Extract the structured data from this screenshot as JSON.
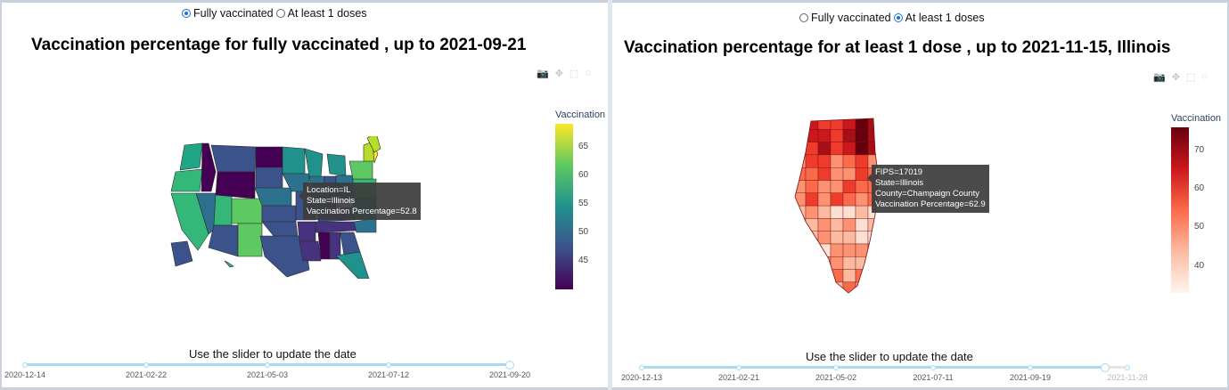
{
  "left": {
    "radio_options": [
      {
        "label": "Fully vaccinated",
        "checked": true
      },
      {
        "label": "At least 1 doses",
        "checked": false
      }
    ],
    "title": "Vaccination percentage for fully vaccinated , up to 2021-09-21",
    "colorbar": {
      "title": "Vaccination",
      "ticks": [
        "65",
        "60",
        "55",
        "50",
        "45"
      ],
      "min": 40,
      "max": 69,
      "colors": [
        "#fde725",
        "#5ec962",
        "#21918c",
        "#3b528b",
        "#440154"
      ]
    },
    "tooltip": {
      "lines": [
        "Location=IL",
        "State=Illinois",
        "Vaccination Percentage=52.8"
      ]
    },
    "slider": {
      "caption": "Use the slider to update the date",
      "marks": [
        "2020-12-14",
        "2021-02-22",
        "2021-05-03",
        "2021-07-12",
        "2021-09-20"
      ],
      "position": 1.0
    }
  },
  "right": {
    "radio_options": [
      {
        "label": "Fully vaccinated",
        "checked": false
      },
      {
        "label": "At least 1 doses",
        "checked": true
      }
    ],
    "title": "Vaccination percentage for at least 1 dose , up to 2021-11-15, Illinois",
    "colorbar": {
      "title": "Vaccination",
      "ticks": [
        "70",
        "60",
        "50",
        "40"
      ],
      "min": 33,
      "max": 76,
      "colors": [
        "#67000d",
        "#cb181d",
        "#fb6a4a",
        "#fcbba1",
        "#fff5f0"
      ]
    },
    "tooltip": {
      "lines": [
        "FIPS=17019",
        "State=Illinois",
        "County=Champaign County",
        "Vaccination Percentage=62.9"
      ]
    },
    "slider": {
      "caption": "Use the slider to update the date",
      "marks": [
        "2020-12-13",
        "2021-02-21",
        "2021-05-02",
        "2021-07-11",
        "2021-09-19",
        "2021-11-28"
      ],
      "position": 0.9545
    }
  },
  "modebar_icons": [
    "camera-icon",
    "pan-icon",
    "box-select-icon",
    "lasso-icon"
  ]
}
